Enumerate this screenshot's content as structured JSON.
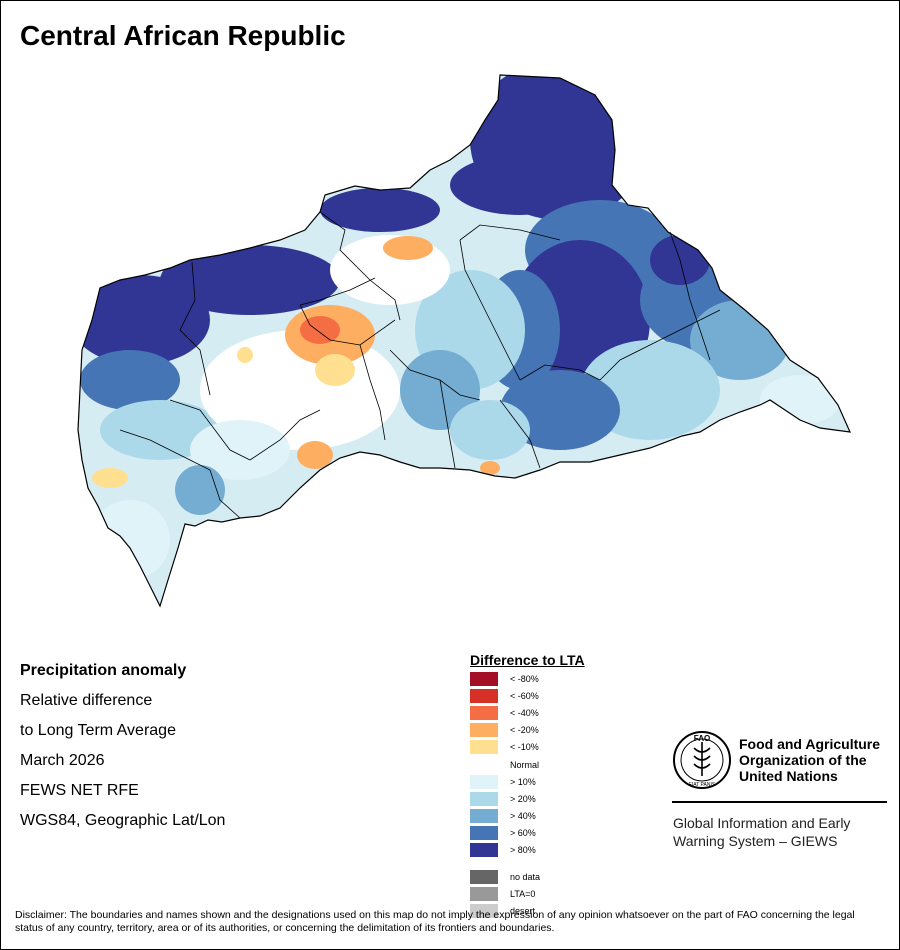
{
  "map_title": "Central African Republic",
  "info_lines": [
    "Precipitation anomaly",
    "Relative difference",
    "to Long Term Average",
    "March 2026",
    "FEWS NET RFE",
    "WGS84, Geographic Lat/Lon"
  ],
  "legend": {
    "title": "Difference to LTA",
    "items": [
      {
        "label": "< -80%",
        "color": "#a50f26"
      },
      {
        "label": "< -60%",
        "color": "#d73027"
      },
      {
        "label": "< -40%",
        "color": "#f46d43"
      },
      {
        "label": "< -20%",
        "color": "#fdae61"
      },
      {
        "label": "< -10%",
        "color": "#fee090"
      },
      {
        "label": "Normal",
        "color": "#ffffff"
      },
      {
        "label": "> 10%",
        "color": "#e0f3f8"
      },
      {
        "label": "> 20%",
        "color": "#abd9e9"
      },
      {
        "label": "> 40%",
        "color": "#74add1"
      },
      {
        "label": "> 60%",
        "color": "#4575b4"
      },
      {
        "label": "> 80%",
        "color": "#313695"
      },
      {
        "label": "no data",
        "color": "#666666"
      },
      {
        "label": "LTA=0",
        "color": "#999999"
      },
      {
        "label": "desert",
        "color": "#cccccc"
      }
    ]
  },
  "fao": {
    "logo_letters": "FAO",
    "logo_motto": "FIAT PANIS",
    "name_lines": [
      "Food and Agriculture",
      "Organization of the",
      "United Nations"
    ],
    "giews_lines": [
      "Global Information and Early",
      "Warning System – GIEWS"
    ]
  },
  "disclaimer": "Disclaimer: The boundaries and names shown and the designations used on this map do not imply the expression of any opinion whatsoever on the part of FAO concerning the legal status of any country, territory, area or of its authorities, or concerning the delimitation of its frontiers and boundaries."
}
